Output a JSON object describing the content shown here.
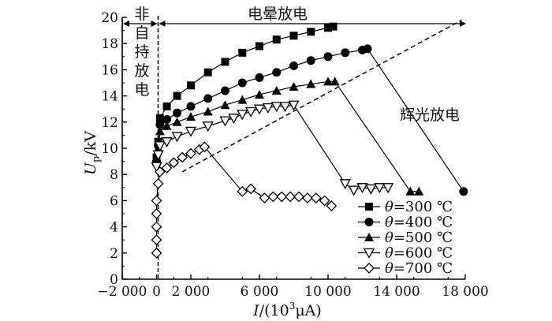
{
  "chart_data": {
    "type": "scatter",
    "title": "",
    "xlabel": "I/(10³μA)",
    "ylabel": "Up/kV",
    "xlim": [
      -2000,
      18000
    ],
    "ylim": [
      0,
      20
    ],
    "x_ticks": [
      -2000,
      0,
      2000,
      6000,
      10000,
      14000,
      18000
    ],
    "x_tick_labels": [
      "−2 000",
      "0",
      "2 000",
      "6 000",
      "10 000",
      "14 000",
      "18 000"
    ],
    "y_ticks": [
      0,
      2,
      4,
      6,
      8,
      10,
      12,
      14,
      16,
      18,
      20
    ],
    "y_tick_labels": [
      "0",
      "2",
      "4",
      "6",
      "8",
      "10",
      "12",
      "14",
      "16",
      "18",
      "20"
    ],
    "grid": false,
    "legend_position": "bottom-right",
    "annotations": {
      "non_self_sustained": [
        "非",
        "自",
        "持",
        "放",
        "电"
      ],
      "corona": "电晕放电",
      "glow": "辉光放电"
    },
    "series": [
      {
        "name": "θ=300 ℃",
        "marker": "square",
        "x": [
          0,
          100,
          200,
          600,
          1200,
          2000,
          3000,
          4000,
          5000,
          6000,
          7000,
          8000,
          9000,
          10000,
          10300
        ],
        "y": [
          9.3,
          10.5,
          12.3,
          13.2,
          14.0,
          14.8,
          15.8,
          16.6,
          17.3,
          17.8,
          18.3,
          18.6,
          18.9,
          19.2,
          19.3
        ],
        "drop_x": null,
        "drop_y": null
      },
      {
        "name": "θ=400 ℃",
        "marker": "circle",
        "x": [
          0,
          100,
          200,
          600,
          1200,
          2000,
          3000,
          4000,
          5000,
          6000,
          7000,
          8000,
          9000,
          10000,
          11000,
          12000,
          12300
        ],
        "y": [
          9.0,
          10.2,
          11.8,
          12.2,
          12.7,
          13.2,
          13.8,
          14.4,
          15.0,
          15.4,
          15.8,
          16.3,
          16.7,
          17.0,
          17.3,
          17.5,
          17.6
        ],
        "drop_x": [
          17900
        ],
        "drop_y": [
          6.7
        ]
      },
      {
        "name": "θ=500 ℃",
        "marker": "triangle-up",
        "x": [
          0,
          100,
          200,
          600,
          1200,
          2000,
          3000,
          4000,
          5000,
          6000,
          7000,
          8000,
          9000,
          10000,
          10400
        ],
        "y": [
          9.0,
          10.0,
          11.3,
          11.7,
          12.0,
          12.4,
          12.8,
          13.3,
          13.7,
          14.1,
          14.4,
          14.7,
          14.9,
          15.1,
          15.1
        ],
        "drop_x": [
          14800,
          15300
        ],
        "drop_y": [
          6.7,
          6.7
        ]
      },
      {
        "name": "θ=600 ℃",
        "marker": "triangle-down-open",
        "x": [
          0,
          100,
          200,
          600,
          1200,
          2000,
          3000,
          4000,
          4500,
          5000,
          5500,
          6000,
          6500,
          7000,
          7500,
          8000
        ],
        "y": [
          8.6,
          9.5,
          10.2,
          10.5,
          10.9,
          11.3,
          11.7,
          12.1,
          12.3,
          12.6,
          12.8,
          13.0,
          13.1,
          13.2,
          13.2,
          13.3
        ],
        "drop_x": [
          11000,
          11500,
          12000,
          12500,
          13000,
          13500
        ],
        "drop_y": [
          7.3,
          6.8,
          7.0,
          6.9,
          7.0,
          7.0
        ]
      },
      {
        "name": "θ=700 ℃",
        "marker": "diamond-open",
        "x": [
          0,
          0,
          0,
          0,
          0,
          100,
          200,
          600,
          1000,
          1500,
          2000,
          2500,
          2800
        ],
        "y": [
          2.0,
          3.0,
          4.0,
          5.0,
          6.0,
          7.3,
          8.2,
          8.5,
          8.9,
          9.3,
          9.6,
          9.9,
          10.1
        ],
        "drop_x": [
          5000,
          5500,
          6300,
          6800,
          7300,
          7800,
          8300,
          8800,
          9300,
          9800,
          10200
        ],
        "drop_y": [
          6.7,
          6.9,
          6.2,
          6.3,
          6.3,
          6.3,
          6.3,
          6.2,
          6.2,
          6.0,
          5.6
        ]
      }
    ]
  }
}
